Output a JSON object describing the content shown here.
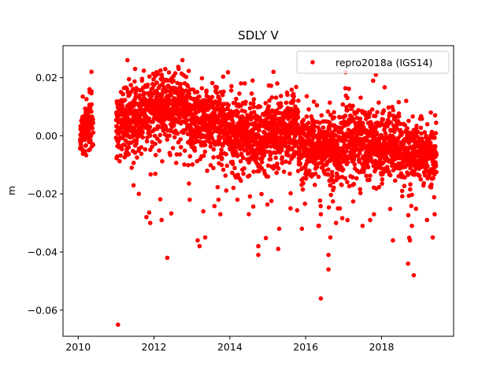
{
  "chart_data": {
    "type": "scatter",
    "title": "SDLY V",
    "xlabel": "",
    "ylabel": "m",
    "xlim": [
      2009.6,
      2019.9
    ],
    "ylim": [
      -0.069,
      0.031
    ],
    "xticks": [
      2010,
      2012,
      2014,
      2016,
      2018
    ],
    "xtick_labels": [
      "2010",
      "2012",
      "2014",
      "2016",
      "2018"
    ],
    "yticks": [
      -0.06,
      -0.04,
      -0.02,
      0.0,
      0.02
    ],
    "ytick_labels": [
      "−0.06",
      "−0.04",
      "−0.02",
      "0.00",
      "0.02"
    ],
    "grid": false,
    "legend": {
      "position": "top-right",
      "entries": [
        "repro2018a (IGS14)"
      ]
    },
    "series": [
      {
        "name": "repro2018a (IGS14)",
        "color": "#ff0000",
        "marker": "circle",
        "segments": [
          {
            "x_start": 2010.05,
            "x_end": 2010.4,
            "trend_start": 0.0,
            "trend_end": 0.006,
            "spread": 0.004
          },
          {
            "x_start": 2011.0,
            "x_end": 2011.9,
            "trend_start": 0.004,
            "trend_end": 0.009,
            "spread": 0.006
          },
          {
            "x_start": 2011.9,
            "x_end": 2012.9,
            "trend_start": 0.009,
            "trend_end": 0.01,
            "spread": 0.006
          },
          {
            "x_start": 2012.9,
            "x_end": 2013.9,
            "trend_start": 0.006,
            "trend_end": 0.004,
            "spread": 0.006
          },
          {
            "x_start": 2013.9,
            "x_end": 2015.0,
            "trend_start": 0.002,
            "trend_end": -0.002,
            "spread": 0.006
          },
          {
            "x_start": 2015.0,
            "x_end": 2015.8,
            "trend_start": 0.0,
            "trend_end": 0.004,
            "spread": 0.006
          },
          {
            "x_start": 2015.8,
            "x_end": 2017.0,
            "trend_start": -0.003,
            "trend_end": -0.005,
            "spread": 0.006
          },
          {
            "x_start": 2017.0,
            "x_end": 2018.5,
            "trend_start": -0.001,
            "trend_end": -0.004,
            "spread": 0.006
          },
          {
            "x_start": 2018.5,
            "x_end": 2019.45,
            "trend_start": -0.005,
            "trend_end": -0.007,
            "spread": 0.005
          }
        ],
        "outliers": [
          [
            2010.35,
            0.022
          ],
          [
            2010.3,
            0.016
          ],
          [
            2011.05,
            -0.065
          ],
          [
            2011.3,
            0.026
          ],
          [
            2011.5,
            0.023
          ],
          [
            2011.6,
            -0.02
          ],
          [
            2011.8,
            -0.028
          ],
          [
            2011.9,
            -0.03
          ],
          [
            2012.2,
            -0.029
          ],
          [
            2012.35,
            -0.042
          ],
          [
            2012.75,
            0.026
          ],
          [
            2012.65,
            0.023
          ],
          [
            2013.15,
            -0.036
          ],
          [
            2013.2,
            -0.038
          ],
          [
            2013.35,
            -0.035
          ],
          [
            2013.3,
            -0.026
          ],
          [
            2013.7,
            -0.022
          ],
          [
            2013.75,
            -0.027
          ],
          [
            2014.2,
            -0.022
          ],
          [
            2014.5,
            -0.027
          ],
          [
            2014.6,
            0.019
          ],
          [
            2014.75,
            -0.038
          ],
          [
            2014.75,
            -0.041
          ],
          [
            2015.15,
            0.022
          ],
          [
            2015.25,
            0.018
          ],
          [
            2015.3,
            -0.032
          ],
          [
            2015.6,
            -0.025
          ],
          [
            2015.9,
            -0.032
          ],
          [
            2016.35,
            -0.031
          ],
          [
            2016.4,
            -0.027
          ],
          [
            2016.4,
            -0.056
          ],
          [
            2016.6,
            -0.041
          ],
          [
            2016.6,
            -0.046
          ],
          [
            2016.65,
            -0.035
          ],
          [
            2016.8,
            -0.03
          ],
          [
            2016.85,
            -0.025
          ],
          [
            2016.9,
            -0.025
          ],
          [
            2017.1,
            0.013
          ],
          [
            2017.5,
            -0.031
          ],
          [
            2017.7,
            -0.029
          ],
          [
            2017.8,
            -0.027
          ],
          [
            2017.85,
            0.021
          ],
          [
            2018.3,
            -0.036
          ],
          [
            2018.65,
            0.012
          ],
          [
            2018.7,
            -0.044
          ],
          [
            2018.75,
            -0.036
          ],
          [
            2018.8,
            -0.031
          ],
          [
            2018.85,
            -0.048
          ],
          [
            2019.2,
            -0.029
          ],
          [
            2019.35,
            -0.035
          ],
          [
            2019.4,
            -0.027
          ],
          [
            2019.3,
            0.008
          ]
        ]
      }
    ]
  }
}
